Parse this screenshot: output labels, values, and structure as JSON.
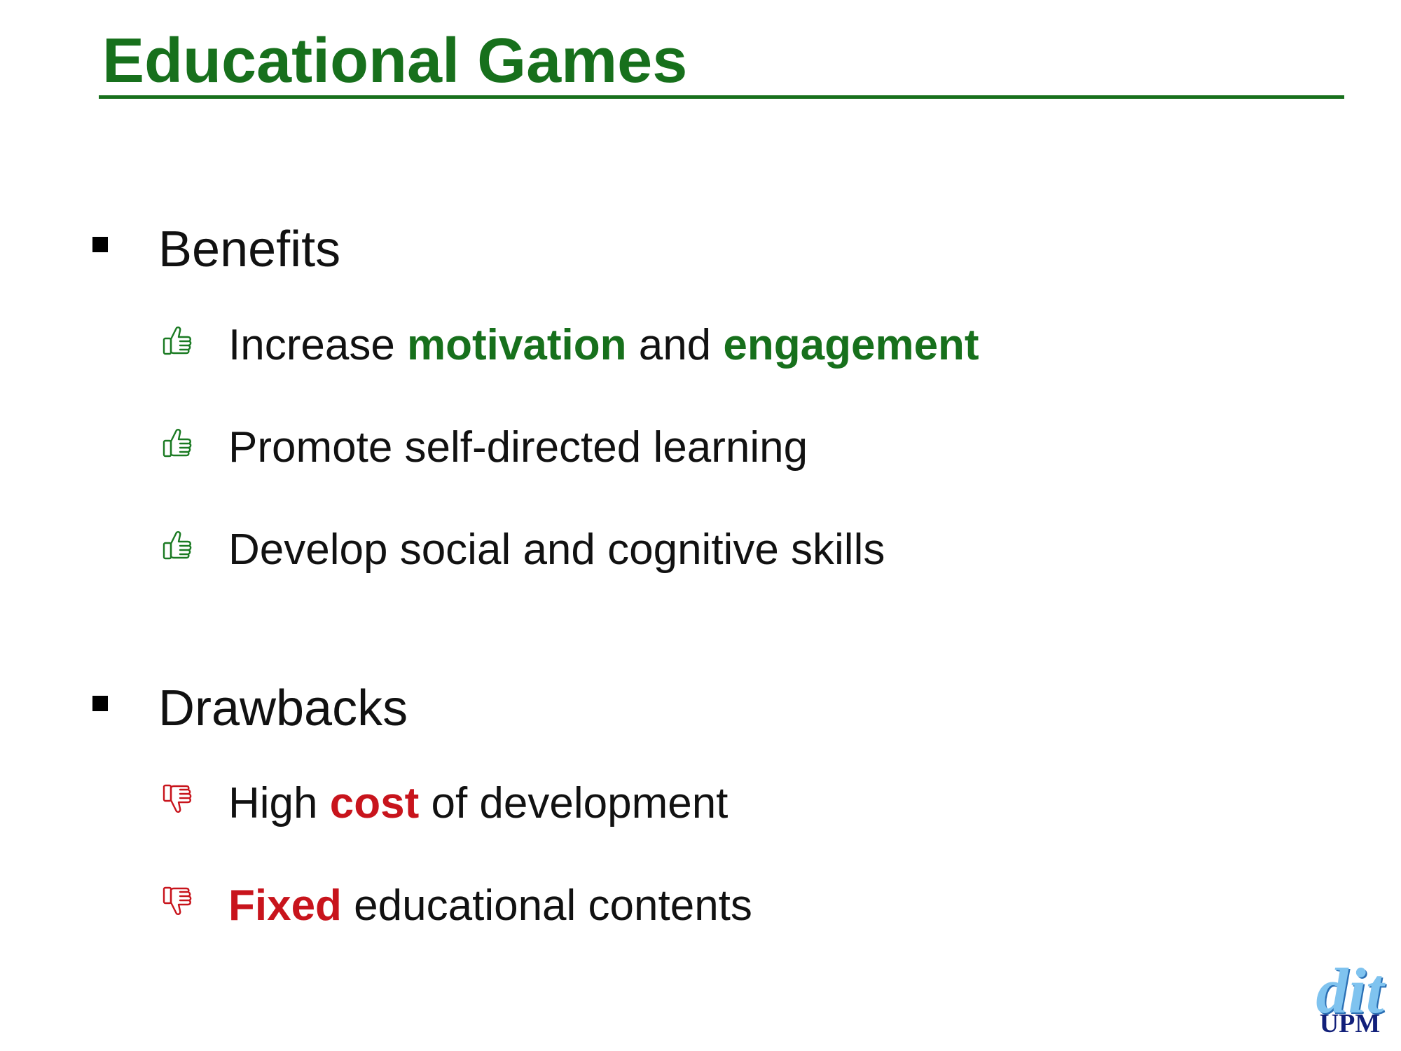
{
  "slide": {
    "title": "Educational Games"
  },
  "sections": [
    {
      "label": "Benefits",
      "items": [
        {
          "icon": "thumbs-up-icon",
          "parts": [
            "Increase ",
            "motivation",
            " and ",
            "engagement"
          ]
        },
        {
          "icon": "thumbs-up-icon",
          "text": "Promote self-directed learning"
        },
        {
          "icon": "thumbs-up-icon",
          "text": "Develop social and cognitive skills"
        }
      ]
    },
    {
      "label": "Drawbacks",
      "items": [
        {
          "icon": "thumbs-down-icon",
          "parts": [
            "High ",
            "cost",
            " of development"
          ]
        },
        {
          "icon": "thumbs-down-icon",
          "parts": [
            "Fixed",
            " educational contents"
          ]
        }
      ]
    }
  ],
  "logo": {
    "line1": "dit",
    "line2": "UPM"
  },
  "colors": {
    "title": "#17701c",
    "benefit_highlight": "#17701c",
    "drawback_highlight": "#c8141c",
    "logo_dit": "#7fc3ef",
    "logo_upm": "#12207a"
  }
}
